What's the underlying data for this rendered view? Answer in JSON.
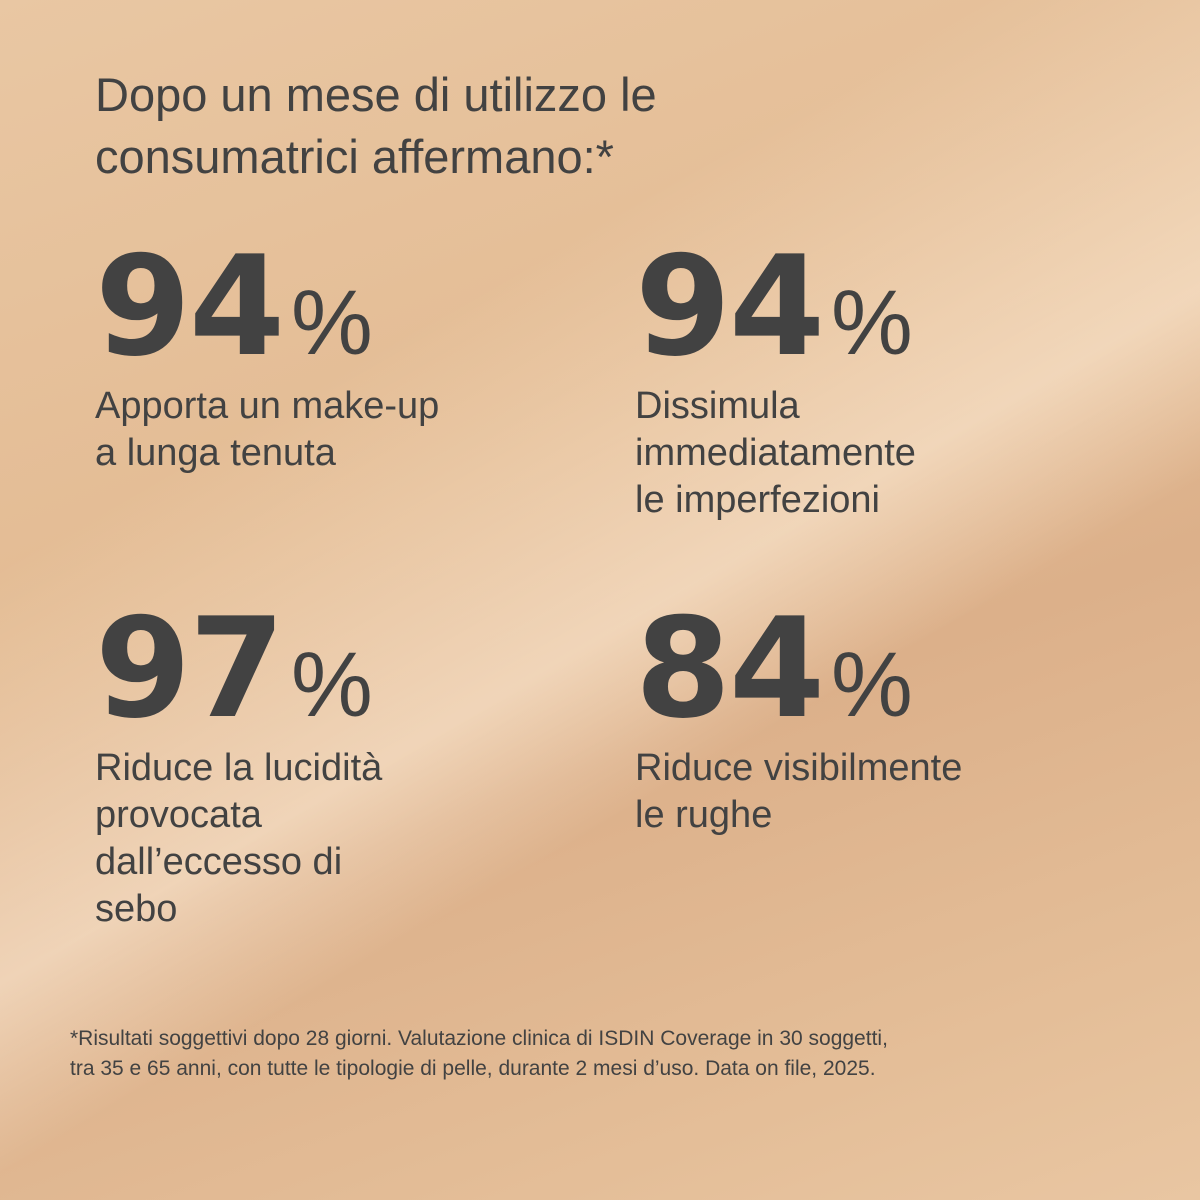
{
  "title": {
    "lines": [
      "Dopo un mese di utilizzo le",
      "consumatrici affermano:*"
    ]
  },
  "stats": [
    {
      "number": "94",
      "unit": "%",
      "description": [
        "Apporta un make-up",
        "a lunga tenuta"
      ]
    },
    {
      "number": "94",
      "unit": "%",
      "description": [
        "Dissimula",
        "immediatamente",
        "le imperfezioni"
      ]
    },
    {
      "number": "97",
      "unit": "%",
      "description": [
        "Riduce la lucidità",
        "provocata",
        "dall’eccesso di",
        "sebo"
      ]
    },
    {
      "number": "84",
      "unit": "%",
      "description": [
        "Riduce visibilmente",
        "le rughe"
      ]
    }
  ],
  "footnote": {
    "lines": [
      "*Risultati soggettivi dopo 28 giorni. Valutazione clinica di ISDIN Coverage in 30 soggetti,",
      "tra 35 e 65 anni, con tutte le tipologie di pelle, durante 2 mesi d’uso. Data on file, 2025."
    ]
  }
}
